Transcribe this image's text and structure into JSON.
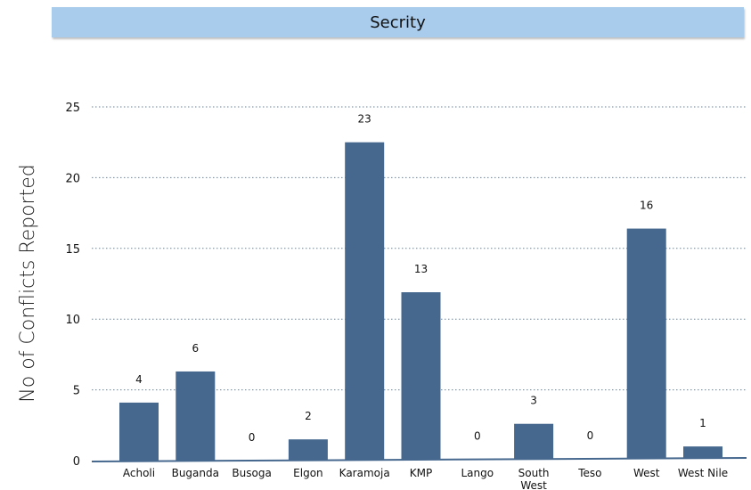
{
  "colors": {
    "bar": "#46688f",
    "banner": "#a9cbec",
    "grid": "#5b86b5"
  },
  "chart_data": {
    "type": "bar",
    "title": "Secrity",
    "ylabel": "No of Conflicts Reported",
    "xlabel": "",
    "categories": [
      "Acholi",
      "Buganda",
      "Busoga",
      "Elgon",
      "Karamoja",
      "KMP",
      "Lango",
      "South West",
      "Teso",
      "West",
      "West Nile"
    ],
    "values": [
      4,
      6,
      0,
      2,
      23,
      13,
      0,
      3,
      0,
      16,
      1
    ],
    "bar_heights_estimated": [
      4.1,
      6.3,
      0,
      1.5,
      22.5,
      11.9,
      0,
      2.6,
      0,
      16.4,
      1.0
    ],
    "ylim": [
      0,
      25
    ],
    "yticks": [
      "0",
      "5",
      "10",
      "15",
      "20",
      "25"
    ],
    "grid": "horizontal dotted",
    "legend": "none"
  }
}
